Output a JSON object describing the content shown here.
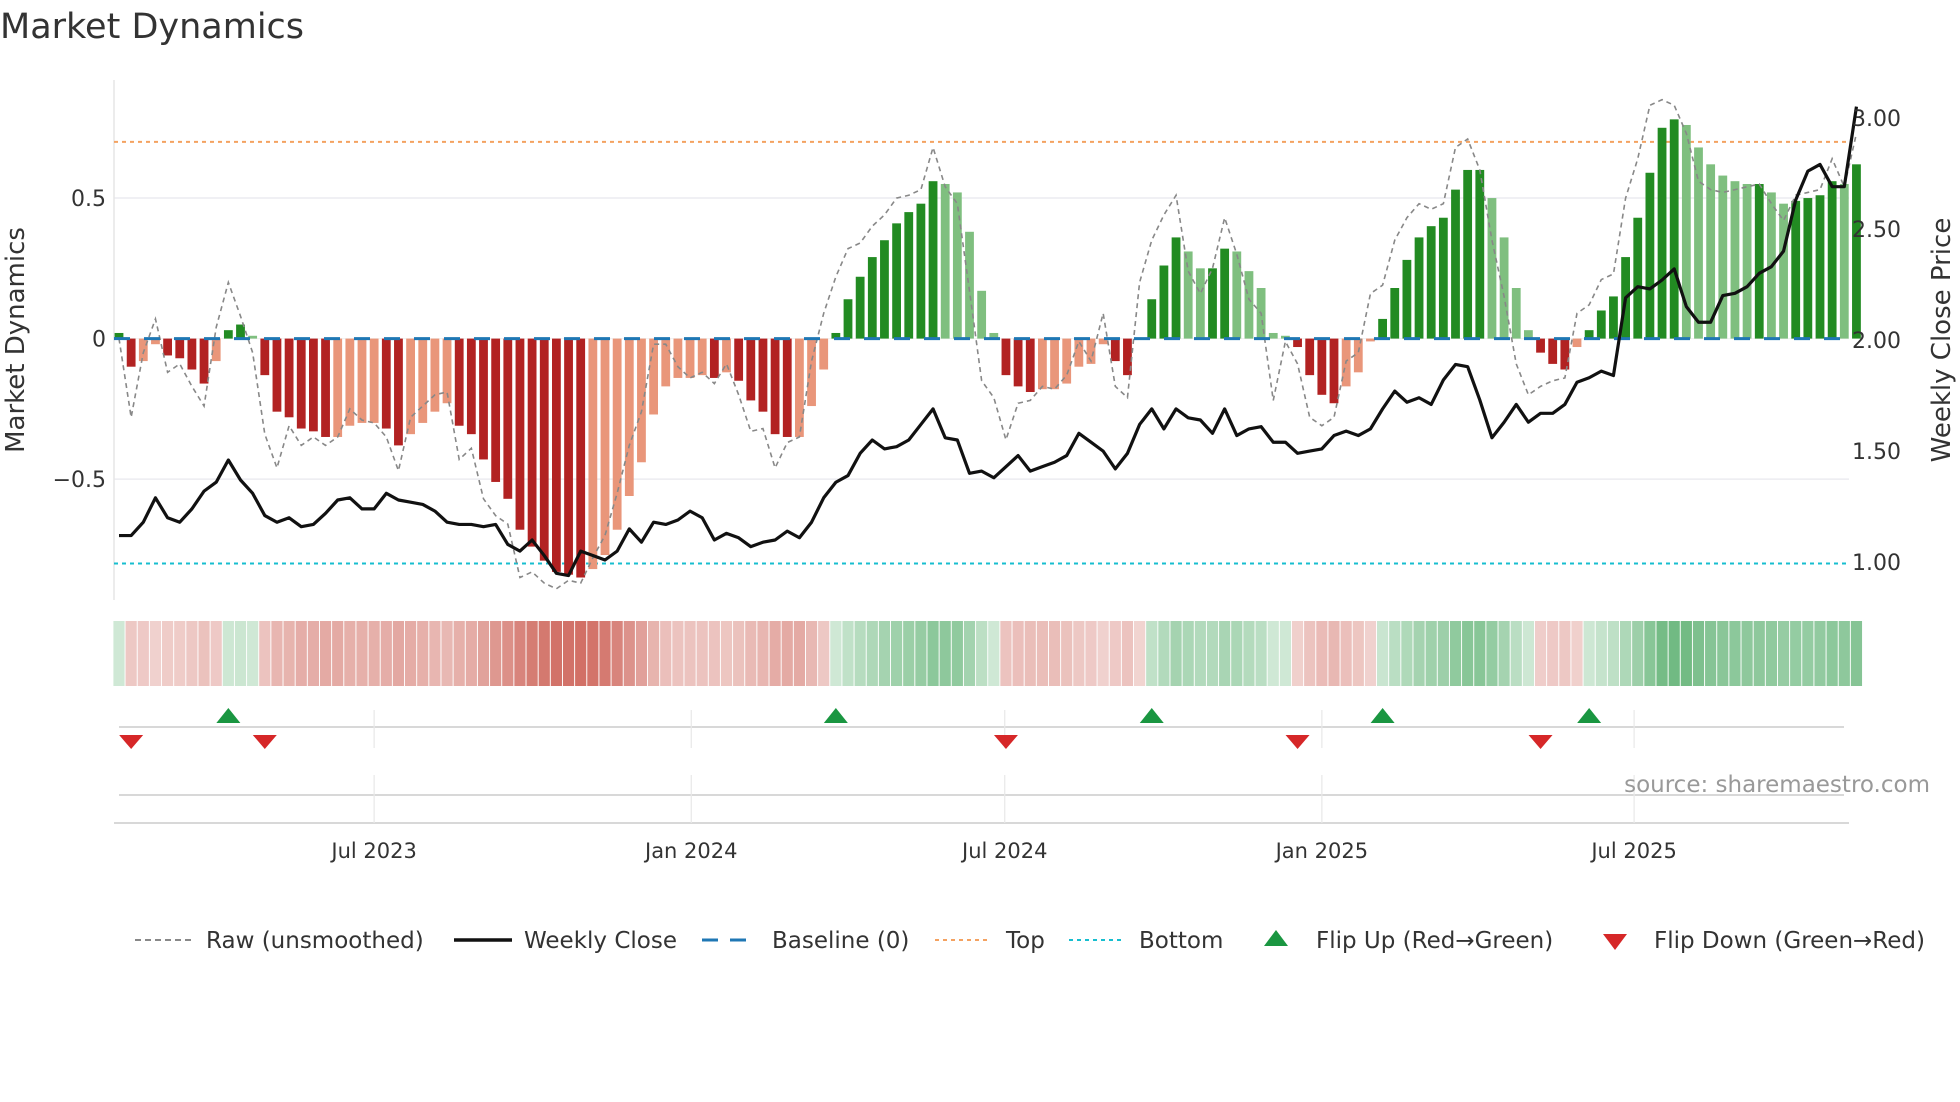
{
  "title": "Market Dynamics",
  "source": "source: sharemaestro.com",
  "colors": {
    "rising_positive": "#228b22",
    "falling_positive": "#7fbf7f",
    "falling_negative": "#b22222",
    "rising_negative": "#e9967a",
    "close": "#111111",
    "raw": "#888888",
    "baseline": "#1f77b4",
    "top": "#f4a261",
    "bottom": "#17becf",
    "flip_up": "#1a9641",
    "flip_down": "#d62728"
  },
  "chart_data": {
    "type": "bar",
    "title": "Market Dynamics",
    "ylabel": "Market Dynamics",
    "y2label": "Weekly Close Price",
    "xlabel": "",
    "x_unit": "week index (weekly bars)",
    "ylim": [
      -0.93,
      0.92
    ],
    "y2lim": [
      0.83,
      3.17
    ],
    "yticks": [
      {
        "value": 0.5,
        "label": "0.5"
      },
      {
        "value": 0,
        "label": "0"
      },
      {
        "value": -0.5,
        "label": "−0.5"
      }
    ],
    "y2ticks": [
      {
        "value": 3.0,
        "label": "3.00"
      },
      {
        "value": 2.5,
        "label": "2.50"
      },
      {
        "value": 2.0,
        "label": "2.00"
      },
      {
        "value": 1.5,
        "label": "1.50"
      },
      {
        "value": 1.0,
        "label": "1.00"
      }
    ],
    "xticks": [
      {
        "week": 21,
        "label": "Jul 2023"
      },
      {
        "week": 47.1,
        "label": "Jan 2024"
      },
      {
        "week": 72.9,
        "label": "Jul 2024"
      },
      {
        "week": 99,
        "label": "Jan 2025"
      },
      {
        "week": 124.7,
        "label": "Jul 2025"
      }
    ],
    "top_level": 0.7,
    "bottom_level": -0.8,
    "baseline": 0,
    "grid": true,
    "legend_placement": "bottom",
    "legend": [
      "Raw (unsmoothed)",
      "Weekly Close",
      "Baseline (0)",
      "Top",
      "Bottom",
      "Flip Up (Red→Green)",
      "Flip Down (Green→Red)"
    ],
    "smoothed": [
      0.02,
      -0.1,
      -0.08,
      -0.02,
      -0.06,
      -0.07,
      -0.11,
      -0.16,
      -0.08,
      0.03,
      0.05,
      0.01,
      -0.13,
      -0.26,
      -0.28,
      -0.32,
      -0.33,
      -0.35,
      -0.35,
      -0.31,
      -0.3,
      -0.3,
      -0.32,
      -0.38,
      -0.34,
      -0.3,
      -0.26,
      -0.23,
      -0.31,
      -0.34,
      -0.43,
      -0.51,
      -0.57,
      -0.68,
      -0.74,
      -0.79,
      -0.83,
      -0.84,
      -0.85,
      -0.82,
      -0.77,
      -0.68,
      -0.56,
      -0.44,
      -0.27,
      -0.17,
      -0.14,
      -0.14,
      -0.13,
      -0.14,
      -0.12,
      -0.15,
      -0.22,
      -0.26,
      -0.34,
      -0.35,
      -0.35,
      -0.24,
      -0.11,
      0.02,
      0.14,
      0.22,
      0.29,
      0.35,
      0.41,
      0.45,
      0.48,
      0.56,
      0.55,
      0.52,
      0.38,
      0.17,
      0.02,
      -0.13,
      -0.17,
      -0.19,
      -0.18,
      -0.18,
      -0.16,
      -0.1,
      -0.09,
      -0.02,
      -0.08,
      -0.13,
      -0.005,
      0.14,
      0.26,
      0.36,
      0.31,
      0.25,
      0.25,
      0.32,
      0.31,
      0.24,
      0.18,
      0.02,
      0.01,
      -0.03,
      -0.13,
      -0.2,
      -0.23,
      -0.17,
      -0.12,
      -0.01,
      0.07,
      0.18,
      0.28,
      0.36,
      0.4,
      0.43,
      0.53,
      0.6,
      0.6,
      0.5,
      0.36,
      0.18,
      0.03,
      -0.05,
      -0.09,
      -0.11,
      -0.03,
      0.03,
      0.1,
      0.15,
      0.29,
      0.43,
      0.59,
      0.75,
      0.78,
      0.76,
      0.68,
      0.62,
      0.58,
      0.56,
      0.55,
      0.55,
      0.52,
      0.48,
      0.49,
      0.5,
      0.51,
      0.56,
      0.55,
      0.62
    ],
    "raw": [
      0.0,
      -0.28,
      -0.05,
      0.07,
      -0.12,
      -0.09,
      -0.17,
      -0.24,
      0.04,
      0.2,
      0.08,
      -0.05,
      -0.34,
      -0.46,
      -0.31,
      -0.38,
      -0.35,
      -0.38,
      -0.35,
      -0.25,
      -0.29,
      -0.3,
      -0.35,
      -0.47,
      -0.28,
      -0.24,
      -0.2,
      -0.19,
      -0.43,
      -0.39,
      -0.57,
      -0.63,
      -0.66,
      -0.85,
      -0.83,
      -0.87,
      -0.89,
      -0.86,
      -0.87,
      -0.78,
      -0.7,
      -0.55,
      -0.38,
      -0.26,
      -0.02,
      -0.02,
      -0.1,
      -0.14,
      -0.12,
      -0.16,
      -0.09,
      -0.2,
      -0.33,
      -0.32,
      -0.46,
      -0.37,
      -0.35,
      -0.08,
      0.09,
      0.22,
      0.32,
      0.34,
      0.4,
      0.44,
      0.5,
      0.51,
      0.53,
      0.68,
      0.54,
      0.48,
      0.17,
      -0.15,
      -0.21,
      -0.36,
      -0.23,
      -0.22,
      -0.17,
      -0.18,
      -0.13,
      -0.01,
      -0.08,
      0.09,
      -0.17,
      -0.21,
      0.2,
      0.35,
      0.44,
      0.51,
      0.24,
      0.16,
      0.25,
      0.43,
      0.3,
      0.14,
      0.09,
      -0.22,
      -0.01,
      -0.09,
      -0.28,
      -0.31,
      -0.28,
      -0.08,
      -0.05,
      0.16,
      0.19,
      0.35,
      0.43,
      0.48,
      0.46,
      0.48,
      0.68,
      0.71,
      0.6,
      0.35,
      0.15,
      -0.09,
      -0.2,
      -0.17,
      -0.15,
      -0.14,
      0.09,
      0.12,
      0.21,
      0.23,
      0.5,
      0.64,
      0.83,
      0.85,
      0.83,
      0.73,
      0.56,
      0.53,
      0.52,
      0.53,
      0.54,
      0.55,
      0.48,
      0.42,
      0.51,
      0.52,
      0.53,
      0.64,
      0.54,
      0.73
    ],
    "close": [
      1.12,
      1.12,
      1.18,
      1.29,
      1.2,
      1.18,
      1.24,
      1.32,
      1.36,
      1.46,
      1.37,
      1.31,
      1.21,
      1.18,
      1.2,
      1.16,
      1.17,
      1.22,
      1.28,
      1.29,
      1.24,
      1.24,
      1.31,
      1.28,
      1.27,
      1.26,
      1.23,
      1.18,
      1.17,
      1.17,
      1.16,
      1.17,
      1.08,
      1.05,
      1.1,
      1.03,
      0.95,
      0.94,
      1.05,
      1.03,
      1.01,
      1.05,
      1.15,
      1.09,
      1.18,
      1.17,
      1.19,
      1.23,
      1.2,
      1.1,
      1.13,
      1.11,
      1.07,
      1.09,
      1.1,
      1.14,
      1.11,
      1.18,
      1.29,
      1.36,
      1.39,
      1.49,
      1.55,
      1.51,
      1.52,
      1.55,
      1.62,
      1.69,
      1.56,
      1.55,
      1.4,
      1.41,
      1.38,
      1.43,
      1.48,
      1.41,
      1.43,
      1.45,
      1.48,
      1.58,
      1.54,
      1.5,
      1.42,
      1.49,
      1.62,
      1.69,
      1.6,
      1.69,
      1.65,
      1.64,
      1.58,
      1.69,
      1.57,
      1.6,
      1.61,
      1.54,
      1.54,
      1.49,
      1.5,
      1.51,
      1.57,
      1.59,
      1.57,
      1.6,
      1.69,
      1.77,
      1.72,
      1.74,
      1.71,
      1.82,
      1.89,
      1.88,
      1.73,
      1.56,
      1.63,
      1.71,
      1.63,
      1.67,
      1.67,
      1.71,
      1.81,
      1.83,
      1.86,
      1.84,
      2.19,
      2.24,
      2.23,
      2.27,
      2.32,
      2.15,
      2.08,
      2.08,
      2.2,
      2.21,
      2.24,
      2.3,
      2.33,
      2.4,
      2.63,
      2.76,
      2.79,
      2.69,
      2.69,
      3.05
    ],
    "flip_up_weeks": [
      9,
      59,
      85,
      104,
      121
    ],
    "flip_down_weeks": [
      1,
      12,
      73,
      97,
      117
    ]
  }
}
